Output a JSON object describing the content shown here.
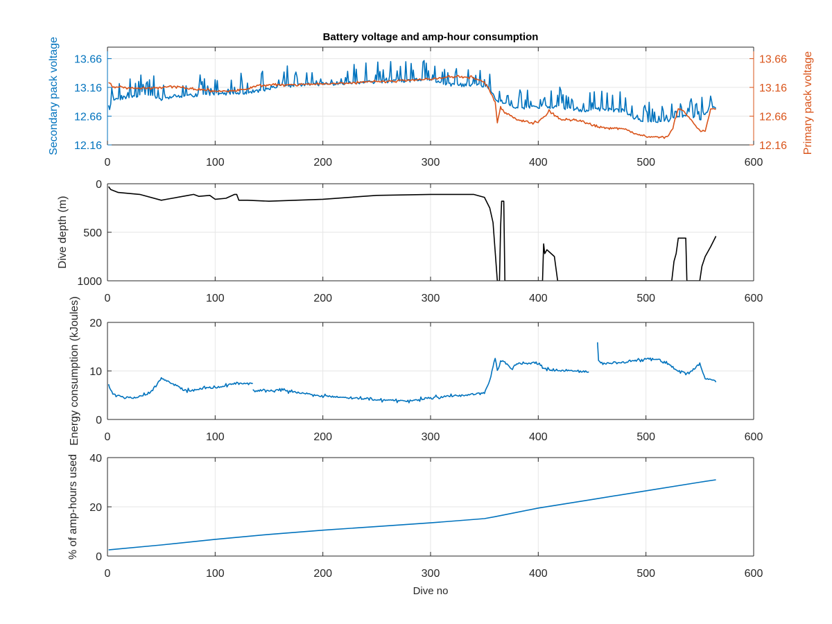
{
  "figure": {
    "title": "Battery voltage and amp-hour consumption",
    "xlabel": "Dive no"
  },
  "colors": {
    "blue": "#0072BD",
    "orange": "#D95319",
    "black": "#000000",
    "grid": "#e6e6e6",
    "axis": "#262626"
  },
  "chart_data": [
    {
      "type": "line",
      "title": "Battery voltage and amp-hour consumption",
      "xlabel": "",
      "ylabel": "Secondary pack voltage",
      "y2label": "Primary pack voltage",
      "xlim": [
        0,
        600
      ],
      "ylim": [
        12.16,
        13.86
      ],
      "y2lim": [
        12.16,
        13.86
      ],
      "xticks": [
        "0",
        "100",
        "200",
        "300",
        "400",
        "500",
        "600"
      ],
      "yticks": [
        "12.16",
        "12.66",
        "13.16",
        "13.66"
      ],
      "y2ticks": [
        "12.16",
        "12.66",
        "13.16",
        "13.66"
      ],
      "grid": true,
      "series": [
        {
          "axis": "left",
          "color": "#0072BD",
          "noise": 0.15,
          "seed": 11,
          "x": [
            1,
            5,
            20,
            40,
            50,
            60,
            80,
            100,
            120,
            140,
            160,
            200,
            240,
            280,
            300,
            320,
            345,
            355,
            360,
            365,
            380,
            400,
            420,
            440,
            460,
            480,
            490,
            500,
            520,
            530,
            540,
            550,
            560,
            565
          ],
          "y": [
            12.75,
            12.95,
            13.0,
            13.05,
            12.95,
            13.0,
            13.02,
            13.05,
            13.05,
            13.1,
            13.18,
            13.22,
            13.25,
            13.28,
            13.3,
            13.2,
            13.2,
            13.15,
            12.95,
            12.9,
            12.8,
            12.82,
            12.82,
            12.75,
            12.78,
            12.75,
            12.62,
            12.58,
            12.58,
            12.65,
            12.65,
            12.6,
            12.8,
            12.8
          ]
        },
        {
          "axis": "right",
          "color": "#D95319",
          "noise": 0.03,
          "seed": 23,
          "x": [
            1,
            5,
            20,
            40,
            60,
            80,
            100,
            120,
            130,
            140,
            200,
            250,
            300,
            320,
            340,
            350,
            355,
            360,
            362,
            365,
            370,
            380,
            390,
            400,
            410,
            420,
            440,
            450,
            460,
            480,
            490,
            500,
            520,
            525,
            530,
            535,
            550,
            555,
            560,
            565
          ],
          "y": [
            13.25,
            13.18,
            13.15,
            13.15,
            13.18,
            13.13,
            13.1,
            13.1,
            13.13,
            13.2,
            13.22,
            13.26,
            13.3,
            13.35,
            13.33,
            13.25,
            13.1,
            12.9,
            12.55,
            12.8,
            12.72,
            12.6,
            12.55,
            12.55,
            12.75,
            12.6,
            12.58,
            12.5,
            12.45,
            12.45,
            12.35,
            12.3,
            12.3,
            12.45,
            12.8,
            12.75,
            12.4,
            12.4,
            12.78,
            12.78
          ]
        }
      ]
    },
    {
      "type": "line",
      "title": "",
      "xlabel": "",
      "ylabel": "Dive depth (m)",
      "xlim": [
        0,
        600
      ],
      "ylim": [
        0,
        1000
      ],
      "y_reversed": true,
      "xticks": [
        "0",
        "100",
        "200",
        "300",
        "400",
        "500",
        "600"
      ],
      "yticks": [
        "0",
        "500",
        "1000"
      ],
      "grid": true,
      "series": [
        {
          "color": "#000000",
          "noise": 0,
          "x": [
            1,
            3,
            10,
            30,
            50,
            55,
            75,
            80,
            85,
            95,
            100,
            110,
            118,
            120,
            122,
            130,
            150,
            200,
            250,
            300,
            340,
            350,
            355,
            358,
            360,
            362,
            364,
            365,
            366,
            368,
            369,
            370,
            372,
            400,
            404,
            405,
            406,
            408,
            410,
            415,
            418,
            419,
            420,
            450,
            500,
            520,
            524,
            526,
            528,
            530,
            535,
            537,
            538,
            540,
            548,
            550,
            552,
            555,
            560,
            565
          ],
          "y": [
            30,
            60,
            90,
            110,
            170,
            160,
            120,
            110,
            130,
            120,
            160,
            150,
            110,
            110,
            170,
            170,
            180,
            160,
            120,
            110,
            110,
            140,
            250,
            400,
            700,
            1000,
            1000,
            450,
            180,
            180,
            1000,
            1000,
            1000,
            1000,
            1000,
            620,
            720,
            680,
            700,
            750,
            1000,
            1000,
            1000,
            1000,
            1000,
            1000,
            1000,
            800,
            720,
            560,
            560,
            560,
            1000,
            1000,
            1000,
            1000,
            850,
            750,
            650,
            540
          ]
        }
      ]
    },
    {
      "type": "line",
      "title": "",
      "xlabel": "",
      "ylabel": "Energy consumption (kJoules)",
      "xlim": [
        0,
        600
      ],
      "ylim": [
        0,
        20
      ],
      "xticks": [
        "0",
        "100",
        "200",
        "300",
        "400",
        "500",
        "600"
      ],
      "yticks": [
        "0",
        "10",
        "20"
      ],
      "grid": true,
      "series": [
        {
          "color": "#0072BD",
          "noise": 0.45,
          "seed": 5,
          "x": [
            1,
            3,
            8,
            15,
            25,
            40,
            50,
            55,
            65,
            70,
            80,
            90,
            100,
            110,
            120,
            130,
            135,
            null,
            135,
            160,
            180,
            200,
            220,
            250,
            280,
            300,
            330,
            350,
            355,
            358,
            360,
            362,
            365,
            368,
            370,
            375,
            380,
            390,
            400,
            405,
            415,
            430,
            440,
            447,
            null,
            455,
            456,
            460,
            480,
            500,
            510,
            520,
            530,
            540,
            550,
            555,
            565
          ],
          "y": [
            7.5,
            6.0,
            5.0,
            4.5,
            4.5,
            5.5,
            8.5,
            8.0,
            7.0,
            6.0,
            6.0,
            6.5,
            6.5,
            7.0,
            7.5,
            7.5,
            7.5,
            null,
            6.0,
            6.0,
            5.5,
            4.8,
            4.5,
            4.0,
            3.8,
            4.5,
            5.0,
            5.5,
            8.0,
            11.0,
            13.0,
            10.0,
            12.0,
            12.0,
            11.5,
            10.5,
            11.5,
            11.5,
            11.8,
            10.5,
            10.0,
            10.0,
            10.0,
            9.8,
            null,
            16.0,
            12.0,
            11.5,
            11.8,
            12.5,
            12.5,
            11.5,
            10.0,
            9.5,
            11.5,
            8.5,
            7.8
          ]
        }
      ]
    },
    {
      "type": "line",
      "title": "",
      "xlabel": "Dive no",
      "ylabel": "% of amp-hours used",
      "xlim": [
        0,
        600
      ],
      "ylim": [
        0,
        40
      ],
      "xticks": [
        "0",
        "100",
        "200",
        "300",
        "400",
        "500",
        "600"
      ],
      "yticks": [
        "0",
        "20",
        "40"
      ],
      "grid": true,
      "series": [
        {
          "color": "#0072BD",
          "noise": 0,
          "x": [
            1,
            50,
            100,
            150,
            200,
            250,
            300,
            350,
            360,
            400,
            450,
            500,
            550,
            565
          ],
          "y": [
            2.5,
            4.5,
            6.8,
            8.8,
            10.5,
            12.0,
            13.5,
            15.2,
            16.0,
            19.5,
            23.0,
            26.5,
            30.0,
            31.0
          ]
        }
      ]
    }
  ]
}
